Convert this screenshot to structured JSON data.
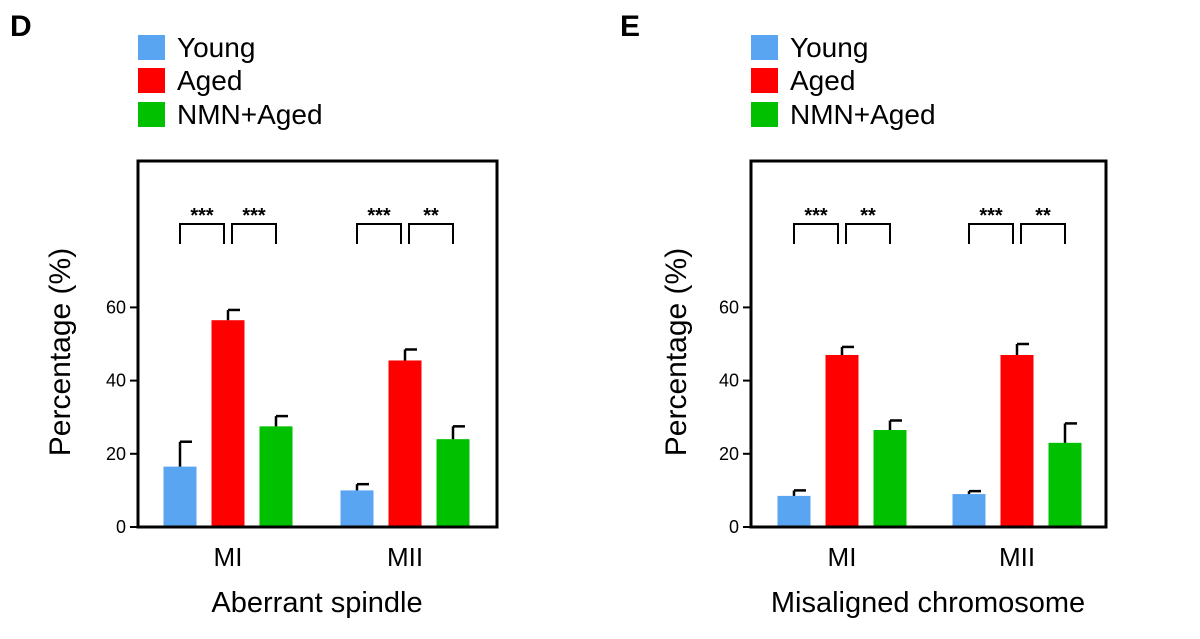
{
  "chart_data": [
    {
      "type": "bar",
      "panel_label": "D",
      "categories": [
        "MI",
        "MII"
      ],
      "series": [
        {
          "name": "Young",
          "color": "#5aa5f2",
          "values": [
            16.5,
            10
          ],
          "errors": [
            6.8,
            1.7
          ]
        },
        {
          "name": "Aged",
          "color": "#ff0000",
          "values": [
            56.5,
            45.5
          ],
          "errors": [
            2.8,
            3.0
          ]
        },
        {
          "name": "NMN+Aged",
          "color": "#00c000",
          "values": [
            27.5,
            24
          ],
          "errors": [
            2.8,
            3.5
          ]
        }
      ],
      "xlabel": "Aberrant spindle",
      "ylabel": "Percentage (%)",
      "ylim": [
        0,
        100
      ],
      "yticks": [
        "0",
        "20",
        "40",
        "60"
      ],
      "legend_position": "top-left",
      "significance": [
        {
          "category": "MI",
          "pairs": [
            {
              "from": "Young",
              "to": "Aged",
              "label": "***"
            },
            {
              "from": "Aged",
              "to": "NMN+Aged",
              "label": "***"
            }
          ]
        },
        {
          "category": "MII",
          "pairs": [
            {
              "from": "Young",
              "to": "Aged",
              "label": "***"
            },
            {
              "from": "Aged",
              "to": "NMN+Aged",
              "label": "**"
            }
          ]
        }
      ]
    },
    {
      "type": "bar",
      "panel_label": "E",
      "categories": [
        "MI",
        "MII"
      ],
      "series": [
        {
          "name": "Young",
          "color": "#5aa5f2",
          "values": [
            8.5,
            9
          ],
          "errors": [
            1.5,
            0.8
          ]
        },
        {
          "name": "Aged",
          "color": "#ff0000",
          "values": [
            47,
            47
          ],
          "errors": [
            2.2,
            3.0
          ]
        },
        {
          "name": "NMN+Aged",
          "color": "#00c000",
          "values": [
            26.5,
            23
          ],
          "errors": [
            2.6,
            5.3
          ]
        }
      ],
      "xlabel": "Misaligned  chromosome",
      "ylabel": "Percentage (%)",
      "ylim": [
        0,
        100
      ],
      "yticks": [
        "0",
        "20",
        "40",
        "60"
      ],
      "legend_position": "top-left",
      "significance": [
        {
          "category": "MI",
          "pairs": [
            {
              "from": "Young",
              "to": "Aged",
              "label": "***"
            },
            {
              "from": "Aged",
              "to": "NMN+Aged",
              "label": "**"
            }
          ]
        },
        {
          "category": "MII",
          "pairs": [
            {
              "from": "Young",
              "to": "Aged",
              "label": "***"
            },
            {
              "from": "Aged",
              "to": "NMN+Aged",
              "label": "**"
            }
          ]
        }
      ]
    }
  ]
}
